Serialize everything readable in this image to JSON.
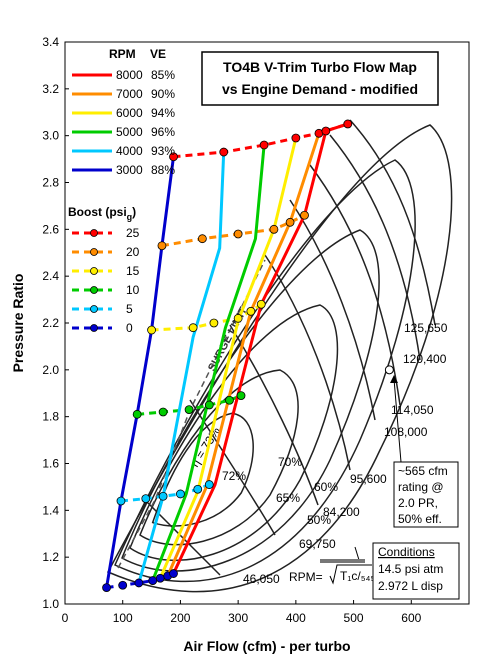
{
  "chart_data": {
    "type": "line",
    "title_lines": [
      "TO4B V-Trim Turbo Flow Map",
      "vs Engine Demand - modified"
    ],
    "xlabel": "Air Flow (cfm) - per turbo",
    "ylabel": "Pressure Ratio",
    "xlim": [
      0,
      700
    ],
    "ylim": [
      1.0,
      3.4
    ],
    "xticks": [
      0,
      100,
      200,
      300,
      400,
      500,
      600
    ],
    "yticks": [
      1.0,
      1.2,
      1.4,
      1.6,
      1.8,
      2.0,
      2.2,
      2.4,
      2.6,
      2.8,
      3.0,
      3.2,
      3.4
    ],
    "grid": false,
    "rpm_legend_header": {
      "rpm": "RPM",
      "ve": "VE"
    },
    "rpm_series": [
      {
        "rpm": "8000",
        "ve": "85%",
        "color": "#ff0000",
        "points": [
          [
            188,
            1.13
          ],
          [
            260,
            1.51
          ],
          [
            340,
            2.28
          ],
          [
            415,
            2.66
          ],
          [
            452,
            3.02
          ],
          [
            490,
            3.05
          ]
        ]
      },
      {
        "rpm": "7000",
        "ve": "90%",
        "color": "#ff8c00",
        "points": [
          [
            178,
            1.12
          ],
          [
            245,
            1.5
          ],
          [
            322,
            2.25
          ],
          [
            390,
            2.63
          ],
          [
            440,
            3.01
          ]
        ]
      },
      {
        "rpm": "6000",
        "ve": "94%",
        "color": "#ffee00",
        "points": [
          [
            165,
            1.11
          ],
          [
            230,
            1.48
          ],
          [
            300,
            2.21
          ],
          [
            362,
            2.6
          ],
          [
            400,
            2.99
          ]
        ]
      },
      {
        "rpm": "5000",
        "ve": "96%",
        "color": "#00cc00",
        "points": [
          [
            152,
            1.1
          ],
          [
            210,
            1.47
          ],
          [
            278,
            2.18
          ],
          [
            330,
            2.56
          ],
          [
            345,
            2.96
          ]
        ]
      },
      {
        "rpm": "4000",
        "ve": "93%",
        "color": "#00c8ff",
        "points": [
          [
            128,
            1.09
          ],
          [
            170,
            1.46
          ],
          [
            222,
            2.14
          ],
          [
            268,
            2.52
          ],
          [
            275,
            2.93
          ]
        ]
      },
      {
        "rpm": "3000",
        "ve": "88%",
        "color": "#0000cc",
        "points": [
          [
            72,
            1.07
          ],
          [
            97,
            1.44
          ],
          [
            125,
            1.81
          ],
          [
            150,
            2.17
          ],
          [
            168,
            2.53
          ],
          [
            188,
            2.91
          ]
        ]
      }
    ],
    "boost_legend_title": "Boost (psi",
    "boost_legend_sub": "g",
    "boost_series": [
      {
        "psi": "25",
        "color": "#ff0000",
        "points": [
          [
            188,
            2.91
          ],
          [
            275,
            2.93
          ],
          [
            345,
            2.96
          ],
          [
            400,
            2.99
          ],
          [
            440,
            3.01
          ],
          [
            452,
            3.02
          ],
          [
            490,
            3.05
          ]
        ]
      },
      {
        "psi": "20",
        "color": "#ff8c00",
        "points": [
          [
            168,
            2.53
          ],
          [
            238,
            2.56
          ],
          [
            300,
            2.58
          ],
          [
            362,
            2.6
          ],
          [
            390,
            2.63
          ],
          [
            415,
            2.66
          ]
        ]
      },
      {
        "psi": "15",
        "color": "#ffee00",
        "points": [
          [
            150,
            2.17
          ],
          [
            222,
            2.18
          ],
          [
            258,
            2.2
          ],
          [
            300,
            2.22
          ],
          [
            322,
            2.25
          ],
          [
            340,
            2.28
          ]
        ]
      },
      {
        "psi": "10",
        "color": "#00cc00",
        "points": [
          [
            125,
            1.81
          ],
          [
            170,
            1.82
          ],
          [
            215,
            1.83
          ],
          [
            250,
            1.85
          ],
          [
            285,
            1.87
          ],
          [
            305,
            1.89
          ]
        ]
      },
      {
        "psi": "5",
        "color": "#00c8ff",
        "points": [
          [
            97,
            1.44
          ],
          [
            140,
            1.45
          ],
          [
            170,
            1.46
          ],
          [
            200,
            1.47
          ],
          [
            230,
            1.49
          ],
          [
            250,
            1.51
          ]
        ]
      },
      {
        "psi": "0",
        "color": "#0000cc",
        "points": [
          [
            72,
            1.07
          ],
          [
            100,
            1.08
          ],
          [
            128,
            1.09
          ],
          [
            152,
            1.1
          ],
          [
            165,
            1.11
          ],
          [
            178,
            1.12
          ],
          [
            188,
            1.13
          ]
        ]
      }
    ],
    "surge_label": "SURGE LIMIT",
    "speed_lines": [
      "125,650",
      "120,400",
      "114,050",
      "108,000",
      "95,600",
      "84,200",
      "69,750",
      "46,050"
    ],
    "efficiency_labels": [
      "η = 73%",
      "72%",
      "70%",
      "65%",
      "60%",
      "50%"
    ],
    "rpm_formula_label": "RPM=",
    "rating_point": [
      562,
      2.0
    ],
    "rating_note": [
      "~565 cfm",
      "rating @",
      "2.0 PR,",
      "50% eff."
    ],
    "conditions_box": [
      "Conditions",
      "14.5 psi atm",
      "2.972 L disp"
    ]
  }
}
